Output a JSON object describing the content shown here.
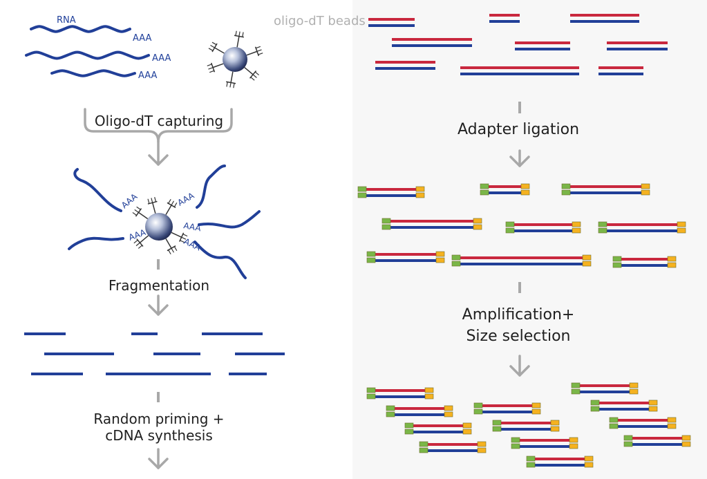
{
  "labels": {
    "rna": "RNA",
    "poly_a": "AAA",
    "oligo_dt_beads": "oligo-dT beads"
  },
  "steps": {
    "oligo_dt_capturing": "Oligo-dT capturing",
    "fragmentation": "Fragmentation",
    "random_priming_line1": "Random priming +",
    "random_priming_line2": "cDNA synthesis",
    "adapter_ligation": "Adapter ligation",
    "amplification_line1": "Amplification+",
    "amplification_line2": "Size selection"
  },
  "colors": {
    "rna_strand": "#213f98",
    "sense_strand": "#c9283e",
    "adapter_left": "#7ab648",
    "adapter_right": "#f5b220",
    "arrow": "#a8a8a8",
    "bead": "#3b4a7a",
    "panel_bg": "#f7f7f7"
  }
}
